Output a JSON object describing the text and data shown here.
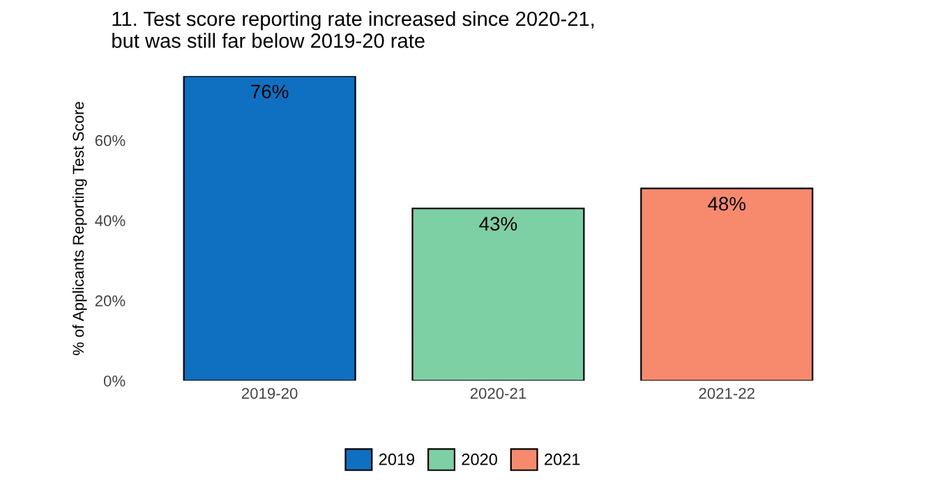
{
  "chart_data": {
    "type": "bar",
    "title": "11. Test score reporting rate increased since 2020-21,\nbut was still far below 2019-20 rate",
    "ylabel": "% of Applicants Reporting Test Score",
    "categories": [
      "2019-20",
      "2020-21",
      "2021-22"
    ],
    "series": [
      {
        "name": "2019",
        "color": "#0f6fc0",
        "values": [
          76,
          null,
          null
        ]
      },
      {
        "name": "2020",
        "color": "#7dd0a4",
        "values": [
          null,
          43,
          null
        ]
      },
      {
        "name": "2021",
        "color": "#f7896d",
        "values": [
          null,
          null,
          48
        ]
      }
    ],
    "value_labels": [
      [
        "76%",
        null,
        null
      ],
      [
        null,
        "43%",
        null
      ],
      [
        null,
        null,
        "48%"
      ]
    ],
    "ylim": [
      0,
      76
    ],
    "yticks": [
      {
        "value": 0,
        "label": "0%"
      },
      {
        "value": 20,
        "label": "20%"
      },
      {
        "value": 40,
        "label": "40%"
      },
      {
        "value": 60,
        "label": "60%"
      }
    ],
    "grid": false,
    "legend": "bottom"
  }
}
